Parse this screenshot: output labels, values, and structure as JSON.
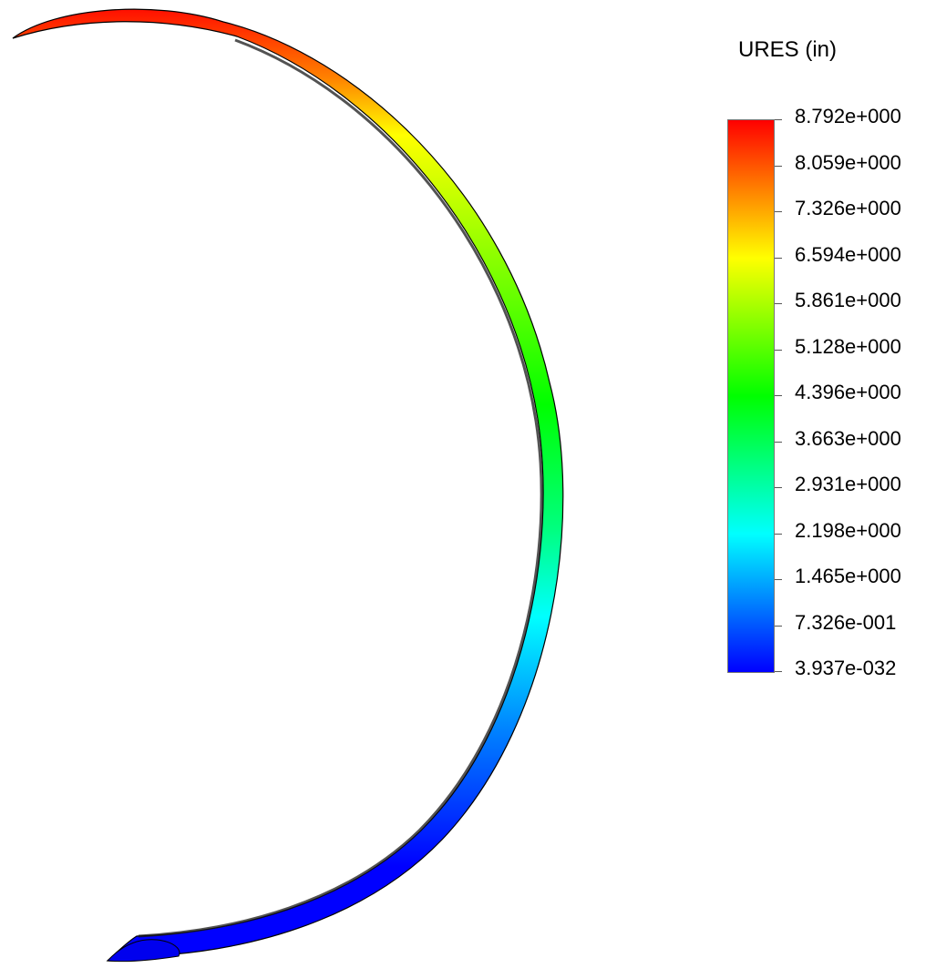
{
  "result_plot": {
    "quantity_label": "URES (in)",
    "part": "curved-band",
    "colormap": [
      "#0000ff",
      "#0080ff",
      "#00ffff",
      "#00ff80",
      "#00ff00",
      "#80ff00",
      "#ffff00",
      "#ff8000",
      "#ff0000"
    ]
  },
  "legend": {
    "title": "URES (in)",
    "min_value": 3.937e-32,
    "max_value": 8.792,
    "tick_labels": [
      "8.792e+000",
      "8.059e+000",
      "7.326e+000",
      "6.594e+000",
      "5.861e+000",
      "5.128e+000",
      "4.396e+000",
      "3.663e+000",
      "2.931e+000",
      "2.198e+000",
      "1.465e+000",
      "7.326e-001",
      "3.937e-032"
    ]
  }
}
